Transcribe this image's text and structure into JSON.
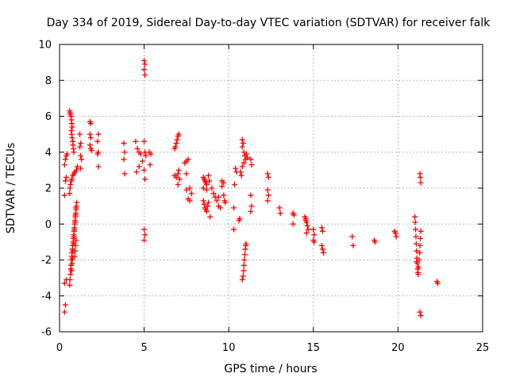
{
  "chart_data": {
    "type": "scatter",
    "title": "Day 334 of 2019, Sidereal Day-to-day VTEC variation (SDTVAR) for receiver falk",
    "xlabel": "GPS time / hours",
    "ylabel": "SDTVAR / TECUs",
    "xlim": [
      0,
      25
    ],
    "ylim": [
      -6,
      10
    ],
    "xticks": [
      0,
      5,
      10,
      15,
      20,
      25
    ],
    "yticks": [
      -6,
      -4,
      -2,
      0,
      2,
      4,
      6,
      8,
      10
    ],
    "grid": true,
    "marker": "plus",
    "color": "#ff0000",
    "series": [
      {
        "name": "SDTVAR",
        "points": [
          [
            0.3,
            -4.9
          ],
          [
            0.35,
            -4.5
          ],
          [
            0.3,
            -3.3
          ],
          [
            0.4,
            -3.1
          ],
          [
            0.3,
            1.6
          ],
          [
            0.35,
            2.4
          ],
          [
            0.4,
            2.6
          ],
          [
            0.3,
            3.3
          ],
          [
            0.35,
            3.6
          ],
          [
            0.4,
            3.8
          ],
          [
            0.45,
            3.9
          ],
          [
            0.6,
            6.3
          ],
          [
            0.62,
            6.2
          ],
          [
            0.65,
            6.1
          ],
          [
            0.68,
            6.0
          ],
          [
            0.7,
            5.8
          ],
          [
            0.72,
            5.6
          ],
          [
            0.75,
            5.4
          ],
          [
            0.7,
            5.2
          ],
          [
            0.72,
            5.0
          ],
          [
            0.75,
            4.8
          ],
          [
            0.78,
            4.6
          ],
          [
            0.8,
            4.4
          ],
          [
            0.82,
            4.2
          ],
          [
            0.85,
            4.0
          ],
          [
            0.6,
            1.7
          ],
          [
            0.62,
            2.0
          ],
          [
            0.65,
            2.2
          ],
          [
            0.7,
            2.4
          ],
          [
            0.72,
            2.5
          ],
          [
            0.78,
            2.7
          ],
          [
            0.85,
            2.8
          ],
          [
            0.92,
            2.9
          ],
          [
            1.0,
            3.0
          ],
          [
            1.05,
            3.2
          ],
          [
            0.6,
            -3.4
          ],
          [
            0.62,
            -3.1
          ],
          [
            0.64,
            -2.8
          ],
          [
            0.66,
            -2.5
          ],
          [
            0.68,
            -2.3
          ],
          [
            0.7,
            -2.0
          ],
          [
            0.72,
            -1.8
          ],
          [
            0.74,
            -1.6
          ],
          [
            0.76,
            -1.4
          ],
          [
            0.78,
            -1.2
          ],
          [
            0.8,
            -1.0
          ],
          [
            0.82,
            -0.8
          ],
          [
            0.84,
            -0.6
          ],
          [
            0.86,
            -0.4
          ],
          [
            0.88,
            -0.2
          ],
          [
            0.9,
            0.0
          ],
          [
            0.92,
            0.2
          ],
          [
            0.94,
            0.4
          ],
          [
            0.96,
            0.6
          ],
          [
            0.98,
            0.8
          ],
          [
            1.0,
            1.0
          ],
          [
            1.02,
            1.2
          ],
          [
            0.72,
            -2.6
          ],
          [
            0.75,
            -2.2
          ],
          [
            0.78,
            -1.9
          ],
          [
            0.8,
            -1.5
          ],
          [
            0.83,
            -1.1
          ],
          [
            0.86,
            -0.7
          ],
          [
            0.88,
            -0.3
          ],
          [
            0.91,
            0.1
          ],
          [
            0.94,
            0.5
          ],
          [
            0.97,
            0.9
          ],
          [
            0.9,
            -1.8
          ],
          [
            0.92,
            -1.5
          ],
          [
            0.95,
            -1.2
          ],
          [
            0.98,
            -0.9
          ],
          [
            1.2,
            5.0
          ],
          [
            1.25,
            4.5
          ],
          [
            1.2,
            4.3
          ],
          [
            1.25,
            3.8
          ],
          [
            1.3,
            3.6
          ],
          [
            1.25,
            3.1
          ],
          [
            1.8,
            5.7
          ],
          [
            1.85,
            5.6
          ],
          [
            1.8,
            5.0
          ],
          [
            1.85,
            4.8
          ],
          [
            1.8,
            4.4
          ],
          [
            1.85,
            4.2
          ],
          [
            1.9,
            4.1
          ],
          [
            2.3,
            5.0
          ],
          [
            2.25,
            4.6
          ],
          [
            2.3,
            4.0
          ],
          [
            2.25,
            3.9
          ],
          [
            2.3,
            3.2
          ],
          [
            3.8,
            4.5
          ],
          [
            3.85,
            4.0
          ],
          [
            3.8,
            3.6
          ],
          [
            3.85,
            2.8
          ],
          [
            4.5,
            4.6
          ],
          [
            4.6,
            4.2
          ],
          [
            4.7,
            4.0
          ],
          [
            4.8,
            3.9
          ],
          [
            4.55,
            2.9
          ],
          [
            4.9,
            3.5
          ],
          [
            4.7,
            3.2
          ],
          [
            5.0,
            9.1
          ],
          [
            5.05,
            8.9
          ],
          [
            5.0,
            8.6
          ],
          [
            5.05,
            8.3
          ],
          [
            5.0,
            4.6
          ],
          [
            5.05,
            4.0
          ],
          [
            5.1,
            3.8
          ],
          [
            5.0,
            3.0
          ],
          [
            5.05,
            2.5
          ],
          [
            5.0,
            -0.3
          ],
          [
            5.05,
            -0.6
          ],
          [
            5.0,
            -0.9
          ],
          [
            5.3,
            4.0
          ],
          [
            5.4,
            3.9
          ],
          [
            5.35,
            3.3
          ],
          [
            6.8,
            4.2
          ],
          [
            6.85,
            4.3
          ],
          [
            6.9,
            4.5
          ],
          [
            6.95,
            4.7
          ],
          [
            7.0,
            4.9
          ],
          [
            7.05,
            5.0
          ],
          [
            6.8,
            2.7
          ],
          [
            6.9,
            2.6
          ],
          [
            7.0,
            2.8
          ],
          [
            7.05,
            3.0
          ],
          [
            7.1,
            2.5
          ],
          [
            7.0,
            2.2
          ],
          [
            7.4,
            3.4
          ],
          [
            7.5,
            3.5
          ],
          [
            7.6,
            3.6
          ],
          [
            7.5,
            2.8
          ],
          [
            7.5,
            1.9
          ],
          [
            7.6,
            1.4
          ],
          [
            7.7,
            2.0
          ],
          [
            7.8,
            1.7
          ],
          [
            7.7,
            1.3
          ],
          [
            8.5,
            2.6
          ],
          [
            8.55,
            2.5
          ],
          [
            8.6,
            2.4
          ],
          [
            8.65,
            2.3
          ],
          [
            8.7,
            2.2
          ],
          [
            8.5,
            2.0
          ],
          [
            8.8,
            2.7
          ],
          [
            8.85,
            2.4
          ],
          [
            8.7,
            1.9
          ],
          [
            8.5,
            1.3
          ],
          [
            8.55,
            1.1
          ],
          [
            8.6,
            0.9
          ],
          [
            8.65,
            0.8
          ],
          [
            8.7,
            0.7
          ],
          [
            8.75,
            1.0
          ],
          [
            8.8,
            1.2
          ],
          [
            8.9,
            0.4
          ],
          [
            9.0,
            2.0
          ],
          [
            9.1,
            1.7
          ],
          [
            9.2,
            1.5
          ],
          [
            9.3,
            1.3
          ],
          [
            9.4,
            1.0
          ],
          [
            9.5,
            0.9
          ],
          [
            9.4,
            1.5
          ],
          [
            9.6,
            2.4
          ],
          [
            9.7,
            2.3
          ],
          [
            9.6,
            2.1
          ],
          [
            9.7,
            1.6
          ],
          [
            9.75,
            1.3
          ],
          [
            9.8,
            1.2
          ],
          [
            10.3,
            0.9
          ],
          [
            10.3,
            -0.3
          ],
          [
            10.4,
            3.1
          ],
          [
            10.45,
            2.9
          ],
          [
            10.35,
            2.2
          ],
          [
            10.8,
            4.7
          ],
          [
            10.85,
            4.5
          ],
          [
            10.8,
            4.3
          ],
          [
            10.9,
            4.0
          ],
          [
            10.95,
            3.8
          ],
          [
            11.0,
            3.6
          ],
          [
            10.9,
            3.4
          ],
          [
            10.8,
            3.2
          ],
          [
            10.7,
            2.9
          ],
          [
            10.75,
            2.7
          ],
          [
            11.05,
            3.9
          ],
          [
            11.1,
            3.7
          ],
          [
            10.6,
            0.2
          ],
          [
            10.65,
            0.3
          ],
          [
            10.8,
            -3.1
          ],
          [
            10.85,
            -2.9
          ],
          [
            10.88,
            -2.6
          ],
          [
            10.9,
            -2.3
          ],
          [
            10.92,
            -2.0
          ],
          [
            10.95,
            -1.7
          ],
          [
            10.98,
            -1.4
          ],
          [
            11.0,
            -1.2
          ],
          [
            11.02,
            -1.1
          ],
          [
            11.3,
            3.6
          ],
          [
            11.35,
            3.3
          ],
          [
            11.3,
            1.6
          ],
          [
            11.35,
            1.0
          ],
          [
            11.3,
            0.7
          ],
          [
            12.3,
            2.8
          ],
          [
            12.35,
            2.6
          ],
          [
            12.3,
            1.9
          ],
          [
            12.35,
            1.6
          ],
          [
            12.3,
            1.3
          ],
          [
            13.0,
            0.9
          ],
          [
            13.05,
            0.6
          ],
          [
            13.8,
            0.6
          ],
          [
            13.85,
            0.5
          ],
          [
            13.8,
            0.0
          ],
          [
            14.5,
            0.4
          ],
          [
            14.55,
            0.3
          ],
          [
            14.6,
            0.1
          ],
          [
            14.65,
            -0.1
          ],
          [
            14.7,
            -0.3
          ],
          [
            14.6,
            -0.5
          ],
          [
            14.55,
            0.2
          ],
          [
            15.0,
            -0.3
          ],
          [
            15.05,
            -0.6
          ],
          [
            15.0,
            -0.9
          ],
          [
            15.05,
            -1.0
          ],
          [
            15.5,
            -0.2
          ],
          [
            15.55,
            -0.4
          ],
          [
            15.5,
            -1.2
          ],
          [
            15.55,
            -1.4
          ],
          [
            15.6,
            -1.6
          ],
          [
            17.3,
            -0.7
          ],
          [
            17.35,
            -1.2
          ],
          [
            18.6,
            -0.9
          ],
          [
            18.65,
            -1.0
          ],
          [
            19.8,
            -0.4
          ],
          [
            19.85,
            -0.5
          ],
          [
            19.9,
            -0.7
          ],
          [
            21.0,
            0.4
          ],
          [
            21.02,
            0.1
          ],
          [
            21.04,
            -0.3
          ],
          [
            21.06,
            -0.7
          ],
          [
            21.08,
            -1.1
          ],
          [
            21.1,
            -1.5
          ],
          [
            21.12,
            -1.9
          ],
          [
            21.14,
            -2.2
          ],
          [
            21.16,
            -2.5
          ],
          [
            21.18,
            -2.7
          ],
          [
            21.2,
            -2.8
          ],
          [
            21.22,
            -2.4
          ],
          [
            21.25,
            -2.0
          ],
          [
            21.28,
            -1.6
          ],
          [
            21.3,
            -1.2
          ],
          [
            21.32,
            -0.8
          ],
          [
            21.35,
            -0.4
          ],
          [
            21.1,
            -2.1
          ],
          [
            21.3,
            2.8
          ],
          [
            21.32,
            2.6
          ],
          [
            21.35,
            2.3
          ],
          [
            21.3,
            -4.9
          ],
          [
            21.35,
            -5.1
          ],
          [
            22.3,
            -3.2
          ],
          [
            22.35,
            -3.3
          ]
        ]
      }
    ]
  }
}
